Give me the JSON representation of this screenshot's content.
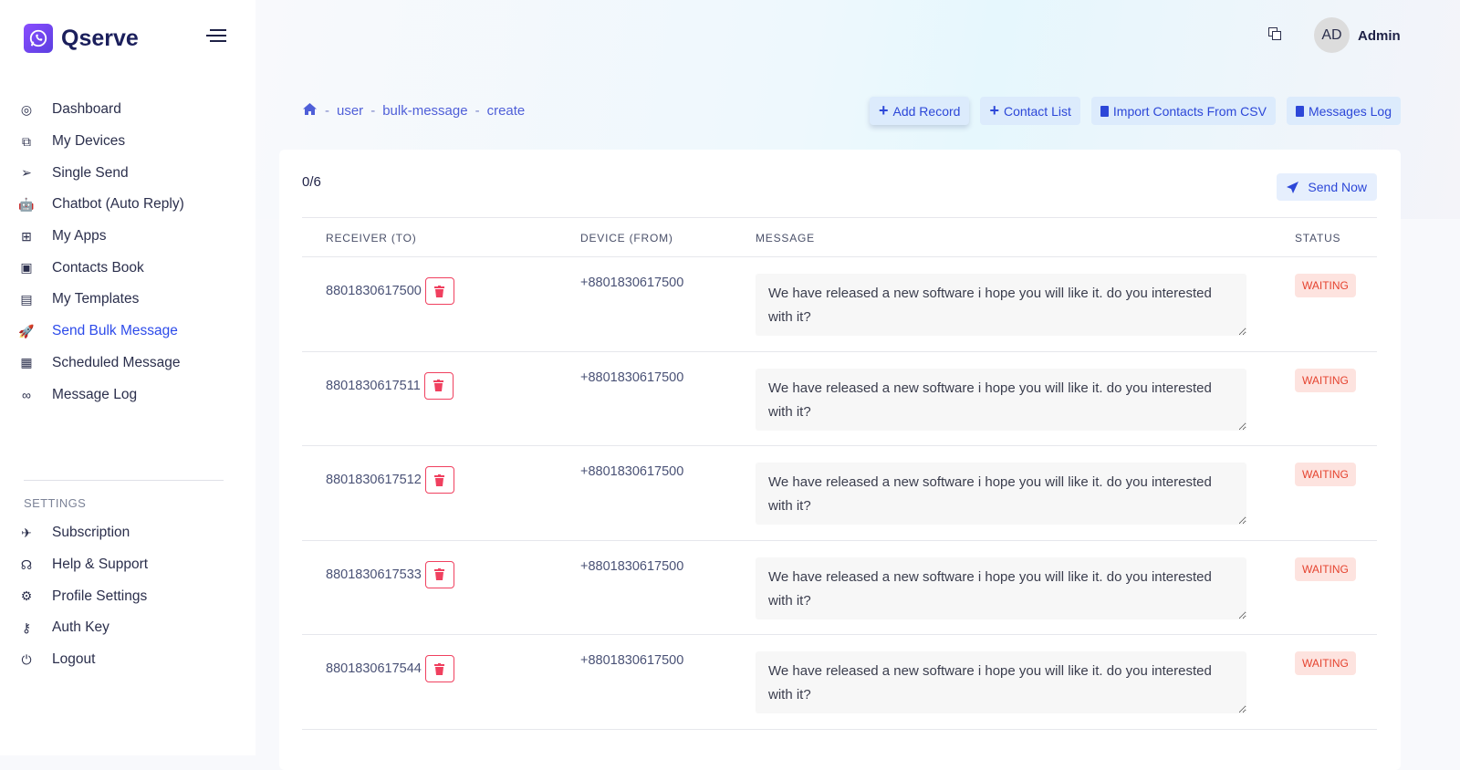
{
  "brand": {
    "name": "Qserve",
    "accent": "#2d4bea"
  },
  "sidebar": {
    "items": [
      {
        "label": "Dashboard",
        "icon": "gauge-icon",
        "glyph": "◎"
      },
      {
        "label": "My Devices",
        "icon": "devices-icon",
        "glyph": "⧉"
      },
      {
        "label": "Single Send",
        "icon": "paper-plane-icon",
        "glyph": "➢"
      },
      {
        "label": "Chatbot (Auto Reply)",
        "icon": "robot-icon",
        "glyph": "🤖"
      },
      {
        "label": "My Apps",
        "icon": "apps-icon",
        "glyph": "⊞"
      },
      {
        "label": "Contacts Book",
        "icon": "contact-book-icon",
        "glyph": "▣"
      },
      {
        "label": "My Templates",
        "icon": "template-icon",
        "glyph": "▤"
      },
      {
        "label": "Send Bulk Message",
        "icon": "rocket-icon",
        "glyph": "🚀",
        "active": true
      },
      {
        "label": "Scheduled Message",
        "icon": "calendar-icon",
        "glyph": "▦"
      },
      {
        "label": "Message Log",
        "icon": "log-icon",
        "glyph": "∞"
      }
    ],
    "settings_label": "SETTINGS",
    "settings": [
      {
        "label": "Subscription",
        "icon": "rocket-icon",
        "glyph": "✈"
      },
      {
        "label": "Help & Support",
        "icon": "headset-icon",
        "glyph": "☊"
      },
      {
        "label": "Profile Settings",
        "icon": "gear-icon",
        "glyph": "⚙"
      },
      {
        "label": "Auth Key",
        "icon": "key-icon",
        "glyph": "⚷"
      },
      {
        "label": "Logout",
        "icon": "power-icon",
        "glyph": "⏻"
      }
    ]
  },
  "header": {
    "avatar": "AD",
    "user": "Admin"
  },
  "breadcrumb": [
    "user",
    "bulk-message",
    "create"
  ],
  "actions": {
    "add_record": "Add Record",
    "contact_list": "Contact List",
    "import_csv": "Import Contacts From CSV",
    "messages_log": "Messages Log"
  },
  "card": {
    "count": "0/6",
    "send_now": "Send Now"
  },
  "table": {
    "headers": [
      "RECEIVER (TO)",
      "DEVICE (FROM)",
      "MESSAGE",
      "STATUS"
    ],
    "rows": [
      {
        "receiver": "8801830617500",
        "device": "+8801830617500",
        "message": "We have released a new software i hope you will like it. do you interested with it?",
        "status": "WAITING"
      },
      {
        "receiver": "8801830617511",
        "device": "+8801830617500",
        "message": "We have released a new software i hope you will like it. do you interested with it?",
        "status": "WAITING"
      },
      {
        "receiver": "8801830617512",
        "device": "+8801830617500",
        "message": "We have released a new software i hope you will like it. do you interested with it?",
        "status": "WAITING"
      },
      {
        "receiver": "8801830617533",
        "device": "+8801830617500",
        "message": "We have released a new software i hope you will like it. do you interested with it?",
        "status": "WAITING"
      },
      {
        "receiver": "8801830617544",
        "device": "+8801830617500",
        "message": "We have released a new software i hope you will like it. do you interested with it?",
        "status": "WAITING"
      }
    ]
  }
}
